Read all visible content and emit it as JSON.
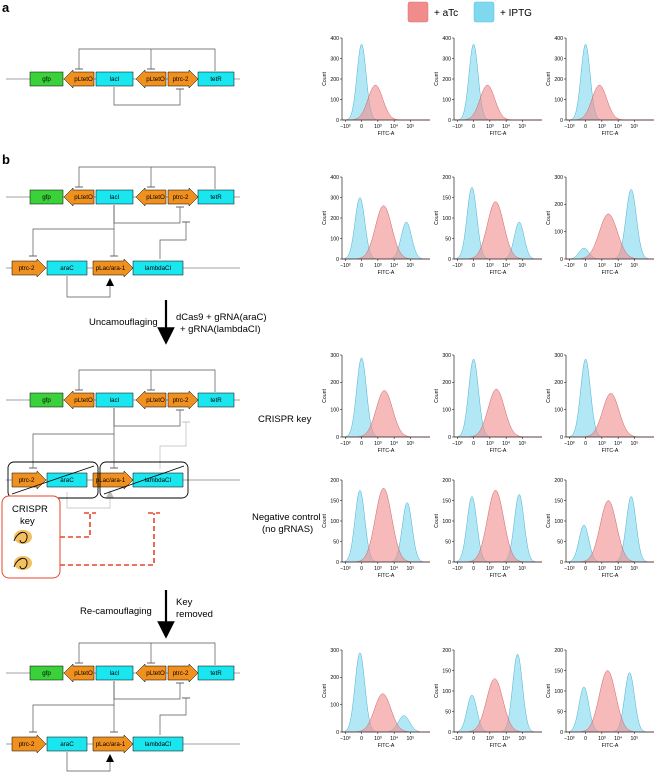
{
  "labels": {
    "panel_a": "a",
    "panel_b": "b"
  },
  "genes": {
    "gfp": "gfp",
    "pLtetO": "pLtetO",
    "lacI": "lacI",
    "ptrc2": "ptrc-2",
    "tetR": "tetR",
    "araC": "araC",
    "pLacara1": "pLac/ara-1",
    "lambdaCI": "lambdaCI"
  },
  "arrows": {
    "uncamo_label": "Uncamouflaging",
    "dcas9_l1": "dCas9 + gRNA(araC)",
    "dcas9_l2": "+ gRNA(lambdaCI)",
    "recamo_label": "Re-camouflaging",
    "key_l1": "Key",
    "key_l2": "removed"
  },
  "crispr_box": {
    "l1": "CRISPR",
    "l2": "key"
  },
  "row_labels": {
    "crispr_key": "CRISPR key",
    "neg_l1": "Negative control",
    "neg_l2": "(no gRNAS)"
  },
  "legend": [
    {
      "name": "+ aTc",
      "color": "#f08c8c"
    },
    {
      "name": "+ IPTG",
      "color": "#7fd8ee"
    }
  ],
  "axes": {
    "x_label": "FITC-A",
    "y_label": "Count",
    "x_ticks": [
      "−10³",
      "0",
      "10³",
      "10⁴",
      "10⁵"
    ]
  },
  "colors": {
    "gene_green": "#3ad13a",
    "gene_cyan": "#19e6ee",
    "promoter_orange": "#f0901e",
    "atc": "#f08c8c",
    "iptg": "#7fd8ee",
    "dashed_red": "#e8452b",
    "key_ellipse": "#f2c060"
  },
  "chart_data": [
    {
      "type": "area",
      "row": "a",
      "ymax": 400,
      "y_ticks": [
        0,
        100,
        200,
        300,
        400
      ],
      "iptg": [
        {
          "mu": 0.0,
          "sd": 0.28,
          "h": 370
        }
      ],
      "atc": [
        {
          "mu": 0.85,
          "sd": 0.45,
          "h": 170
        }
      ]
    },
    {
      "type": "area",
      "row": "a",
      "ymax": 400,
      "y_ticks": [
        0,
        100,
        200,
        300,
        400
      ],
      "iptg": [
        {
          "mu": 0.0,
          "sd": 0.28,
          "h": 370
        }
      ],
      "atc": [
        {
          "mu": 0.85,
          "sd": 0.45,
          "h": 170
        }
      ]
    },
    {
      "type": "area",
      "row": "a",
      "ymax": 400,
      "y_ticks": [
        0,
        100,
        200,
        300,
        400
      ],
      "iptg": [
        {
          "mu": 0.0,
          "sd": 0.28,
          "h": 370
        }
      ],
      "atc": [
        {
          "mu": 0.85,
          "sd": 0.45,
          "h": 170
        }
      ]
    },
    {
      "type": "area",
      "row": "b1",
      "ymax": 400,
      "y_ticks": [
        0,
        100,
        200,
        300,
        400
      ],
      "iptg": [
        {
          "mu": -0.1,
          "sd": 0.3,
          "h": 300
        },
        {
          "mu": 2.75,
          "sd": 0.32,
          "h": 180
        }
      ],
      "atc": [
        {
          "mu": 1.35,
          "sd": 0.5,
          "h": 260
        }
      ]
    },
    {
      "type": "area",
      "row": "b1",
      "ymax": 200,
      "y_ticks": [
        0,
        50,
        100,
        150,
        200
      ],
      "iptg": [
        {
          "mu": -0.1,
          "sd": 0.3,
          "h": 175
        },
        {
          "mu": 2.8,
          "sd": 0.3,
          "h": 90
        }
      ],
      "atc": [
        {
          "mu": 1.35,
          "sd": 0.5,
          "h": 140
        }
      ]
    },
    {
      "type": "area",
      "row": "b1",
      "ymax": 300,
      "y_ticks": [
        0,
        100,
        200,
        300
      ],
      "iptg": [
        {
          "mu": -0.1,
          "sd": 0.3,
          "h": 40
        },
        {
          "mu": 2.8,
          "sd": 0.32,
          "h": 255
        }
      ],
      "atc": [
        {
          "mu": 1.4,
          "sd": 0.55,
          "h": 165
        }
      ]
    },
    {
      "type": "area",
      "row": "crispr",
      "ymax": 300,
      "y_ticks": [
        0,
        100,
        200,
        300
      ],
      "iptg": [
        {
          "mu": 0.0,
          "sd": 0.3,
          "h": 290
        }
      ],
      "atc": [
        {
          "mu": 1.4,
          "sd": 0.5,
          "h": 170
        }
      ]
    },
    {
      "type": "area",
      "row": "crispr",
      "ymax": 300,
      "y_ticks": [
        0,
        100,
        200,
        300
      ],
      "iptg": [
        {
          "mu": 0.0,
          "sd": 0.3,
          "h": 285
        }
      ],
      "atc": [
        {
          "mu": 1.4,
          "sd": 0.5,
          "h": 175
        }
      ]
    },
    {
      "type": "area",
      "row": "crispr",
      "ymax": 300,
      "y_ticks": [
        0,
        100,
        200,
        300
      ],
      "iptg": [
        {
          "mu": 0.0,
          "sd": 0.3,
          "h": 285
        }
      ],
      "atc": [
        {
          "mu": 1.55,
          "sd": 0.5,
          "h": 160
        }
      ]
    },
    {
      "type": "area",
      "row": "neg",
      "ymax": 200,
      "y_ticks": [
        0,
        50,
        100,
        150,
        200
      ],
      "iptg": [
        {
          "mu": -0.1,
          "sd": 0.3,
          "h": 175
        },
        {
          "mu": 2.8,
          "sd": 0.3,
          "h": 145
        }
      ],
      "atc": [
        {
          "mu": 1.35,
          "sd": 0.5,
          "h": 180
        }
      ]
    },
    {
      "type": "area",
      "row": "neg",
      "ymax": 200,
      "y_ticks": [
        0,
        50,
        100,
        150,
        200
      ],
      "iptg": [
        {
          "mu": -0.1,
          "sd": 0.3,
          "h": 160
        },
        {
          "mu": 2.8,
          "sd": 0.3,
          "h": 165
        }
      ],
      "atc": [
        {
          "mu": 1.35,
          "sd": 0.5,
          "h": 175
        }
      ]
    },
    {
      "type": "area",
      "row": "neg",
      "ymax": 200,
      "y_ticks": [
        0,
        50,
        100,
        150,
        200
      ],
      "iptg": [
        {
          "mu": -0.1,
          "sd": 0.3,
          "h": 90
        },
        {
          "mu": 2.8,
          "sd": 0.3,
          "h": 160
        }
      ],
      "atc": [
        {
          "mu": 1.4,
          "sd": 0.5,
          "h": 150
        }
      ]
    },
    {
      "type": "area",
      "row": "recamo",
      "ymax": 300,
      "y_ticks": [
        0,
        100,
        200,
        300
      ],
      "iptg": [
        {
          "mu": -0.1,
          "sd": 0.3,
          "h": 290
        },
        {
          "mu": 2.6,
          "sd": 0.35,
          "h": 60
        }
      ],
      "atc": [
        {
          "mu": 1.3,
          "sd": 0.5,
          "h": 140
        }
      ]
    },
    {
      "type": "area",
      "row": "recamo",
      "ymax": 200,
      "y_ticks": [
        0,
        50,
        100,
        150,
        200
      ],
      "iptg": [
        {
          "mu": -0.1,
          "sd": 0.3,
          "h": 90
        },
        {
          "mu": 2.7,
          "sd": 0.3,
          "h": 190
        }
      ],
      "atc": [
        {
          "mu": 1.3,
          "sd": 0.5,
          "h": 130
        }
      ]
    },
    {
      "type": "area",
      "row": "recamo",
      "ymax": 200,
      "y_ticks": [
        0,
        50,
        100,
        150,
        200
      ],
      "iptg": [
        {
          "mu": -0.1,
          "sd": 0.3,
          "h": 110
        },
        {
          "mu": 2.7,
          "sd": 0.3,
          "h": 145
        }
      ],
      "atc": [
        {
          "mu": 1.35,
          "sd": 0.5,
          "h": 150
        }
      ]
    }
  ]
}
